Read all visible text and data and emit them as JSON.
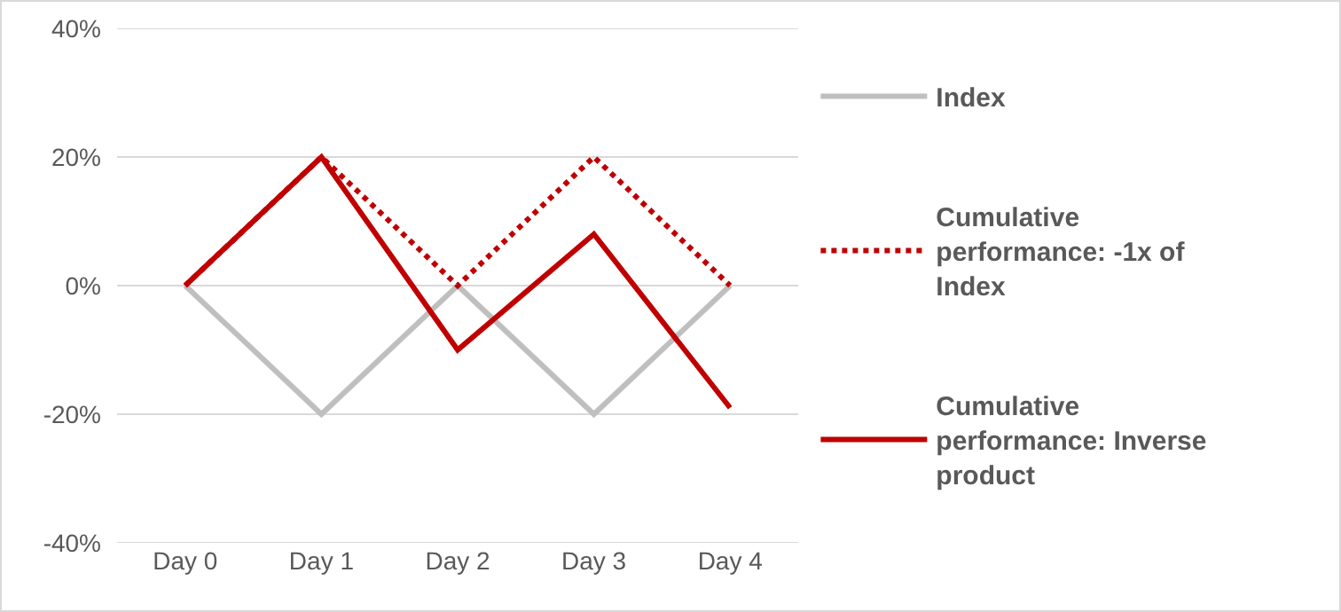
{
  "chart_data": {
    "type": "line",
    "categories": [
      "Day 0",
      "Day 1",
      "Day 2",
      "Day 3",
      "Day 4"
    ],
    "series": [
      {
        "name": "Index",
        "color": "#bfbfbf",
        "values": [
          0,
          -20,
          0,
          -20,
          0
        ]
      },
      {
        "name": "Cumulative performance: -1x of Index",
        "color": "#c00000",
        "line_style": "dotted",
        "values": [
          0,
          20,
          0,
          20,
          0
        ]
      },
      {
        "name": "Cumulative performance: Inverse product",
        "color": "#c00000",
        "line_style": "solid",
        "values": [
          0,
          20,
          -10,
          8,
          -19
        ]
      }
    ],
    "ylim": [
      -40,
      40
    ],
    "yticks": [
      {
        "value": -40,
        "label": "-40%"
      },
      {
        "value": -20,
        "label": "-20%"
      },
      {
        "value": 0,
        "label": "0%"
      },
      {
        "value": 20,
        "label": "20%"
      },
      {
        "value": 40,
        "label": "40%"
      }
    ],
    "grid": "y",
    "legend": "right",
    "marker": "none"
  }
}
